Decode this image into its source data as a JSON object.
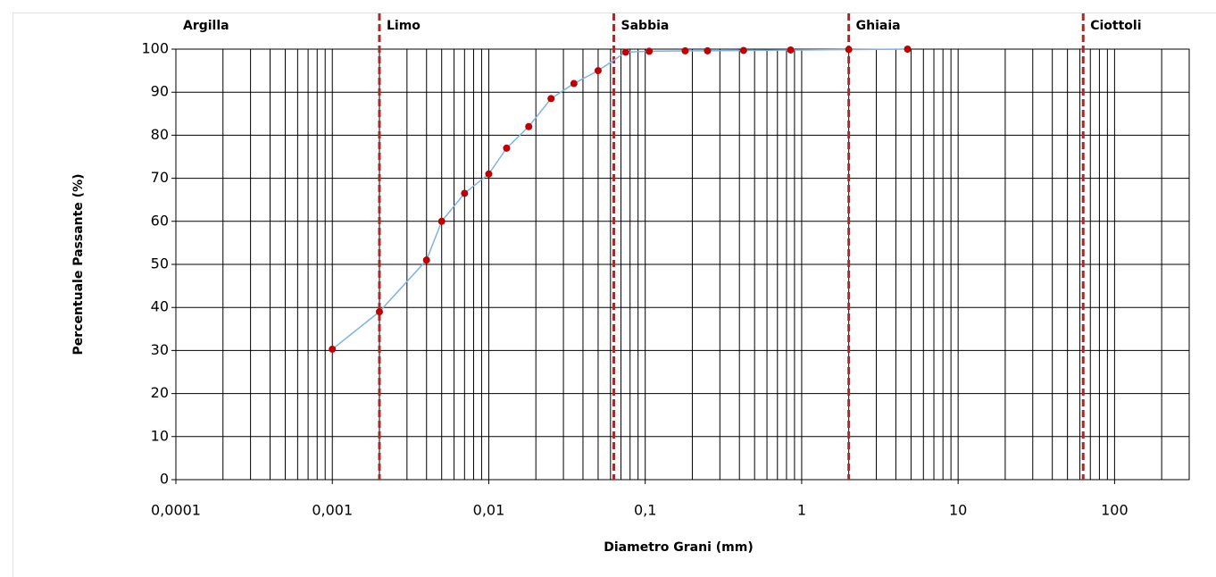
{
  "chart_data": {
    "type": "line",
    "x_label": "Diametro Grani (mm)",
    "y_label": "Percentuale Passante (%)",
    "x_scale": "log",
    "xlim": [
      0.0001,
      300
    ],
    "ylim": [
      0,
      100
    ],
    "xticks": [
      {
        "value": 0.0001,
        "label": "0,0001"
      },
      {
        "value": 0.001,
        "label": "0,001"
      },
      {
        "value": 0.01,
        "label": "0,01"
      },
      {
        "value": 0.1,
        "label": "0,1"
      },
      1,
      10,
      100
    ],
    "yticks": [
      0,
      10,
      20,
      30,
      40,
      50,
      60,
      70,
      80,
      90,
      100
    ],
    "grid": true,
    "minor_grid": true,
    "zones": [
      "Argilla",
      "Limo",
      "Sabbia",
      "Ghiaia",
      "Ciottoli"
    ],
    "boundaries": [
      0.002,
      0.063,
      2,
      63
    ],
    "boundary_color": "#a52a2a",
    "series": [
      {
        "color": "#7fb2e5",
        "marker_color": "#c00000",
        "x": [
          0.001,
          0.002,
          0.004,
          0.005,
          0.007,
          0.01,
          0.013,
          0.018,
          0.025,
          0.035,
          0.05,
          0.075,
          0.106,
          0.18,
          0.25,
          0.425,
          0.85,
          2,
          4.75
        ],
        "values": [
          30.3,
          39,
          51,
          60,
          66.5,
          71,
          77,
          82,
          88.5,
          92,
          95,
          99.3,
          99.5,
          99.6,
          99.6,
          99.7,
          99.8,
          99.9,
          100
        ]
      }
    ]
  }
}
